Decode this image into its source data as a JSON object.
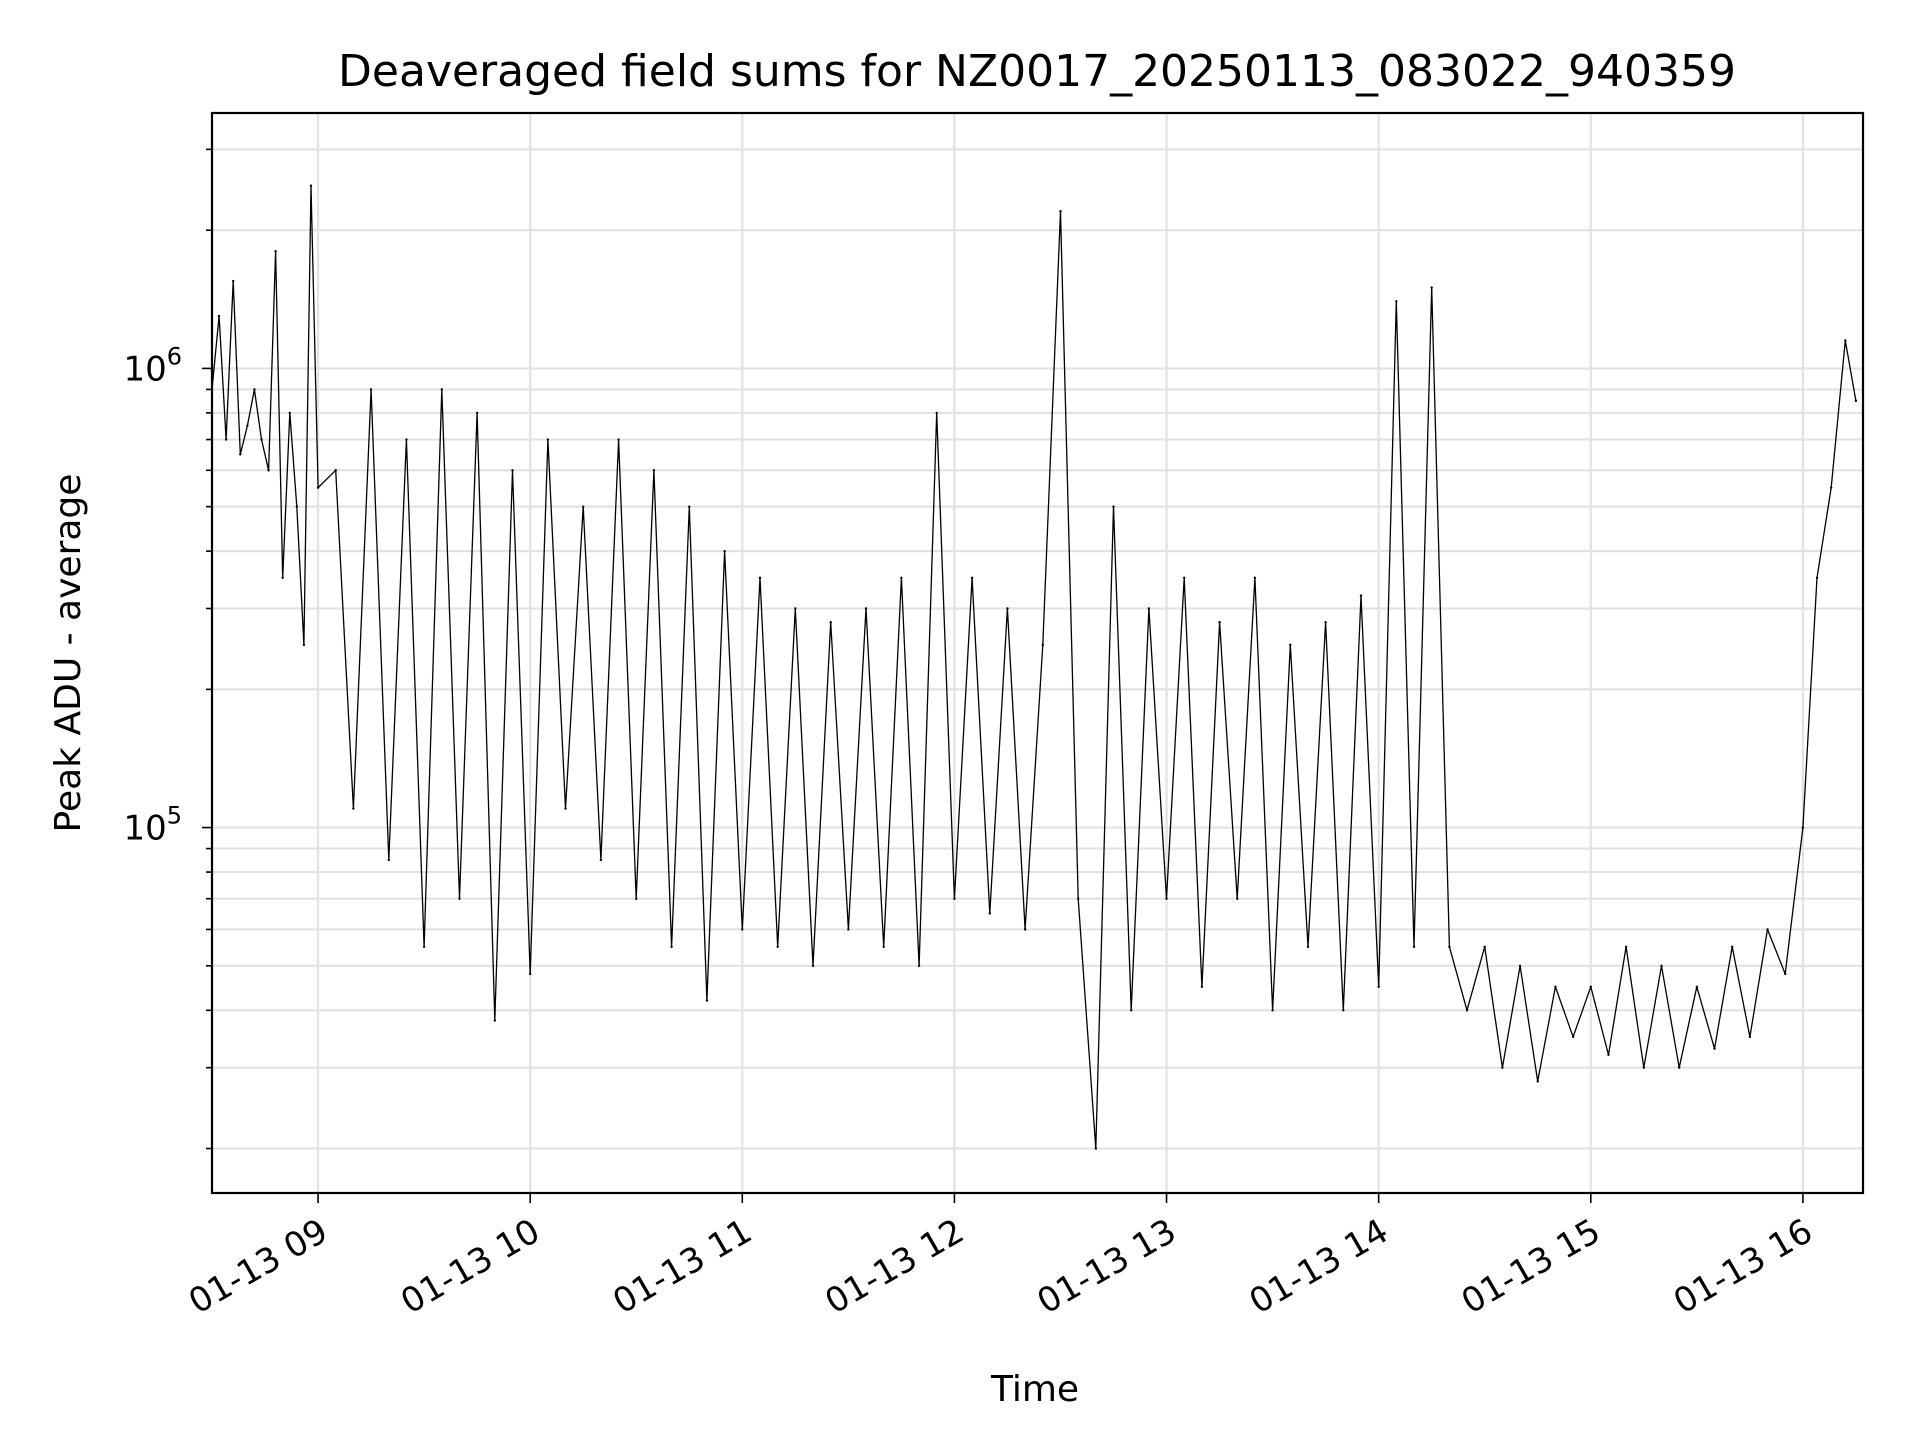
{
  "chart_data": {
    "type": "line",
    "title": "Deaveraged field sums for NZ0017_20250113_083022_940359",
    "xlabel": "Time",
    "ylabel": "Peak ADU - average",
    "x_ticks": [
      "01-13 09",
      "01-13 10",
      "01-13 11",
      "01-13 12",
      "01-13 13",
      "01-13 14",
      "01-13 15",
      "01-13 16"
    ],
    "x_tick_values": [
      "2025-01-13T09:00",
      "2025-01-13T10:00",
      "2025-01-13T11:00",
      "2025-01-13T12:00",
      "2025-01-13T13:00",
      "2025-01-13T14:00",
      "2025-01-13T15:00",
      "2025-01-13T16:00"
    ],
    "xlim": [
      "2025-01-13T08:30",
      "2025-01-13T16:17"
    ],
    "y_scale": "log",
    "ylim": [
      16000,
      3600000
    ],
    "y_ticks": [
      {
        "base": "10",
        "exp": "5",
        "value": 100000
      },
      {
        "base": "10",
        "exp": "6",
        "value": 1000000
      }
    ],
    "grid": true,
    "line_color": "#000000",
    "series": [
      {
        "x": [
          "2025-01-13T08:30",
          "2025-01-13T08:32",
          "2025-01-13T08:34",
          "2025-01-13T08:36",
          "2025-01-13T08:38",
          "2025-01-13T08:40",
          "2025-01-13T08:42",
          "2025-01-13T08:44",
          "2025-01-13T08:46",
          "2025-01-13T08:48",
          "2025-01-13T08:50",
          "2025-01-13T08:52",
          "2025-01-13T08:54",
          "2025-01-13T08:56",
          "2025-01-13T08:58",
          "2025-01-13T09:00",
          "2025-01-13T09:05",
          "2025-01-13T09:10",
          "2025-01-13T09:15",
          "2025-01-13T09:20",
          "2025-01-13T09:25",
          "2025-01-13T09:30",
          "2025-01-13T09:35",
          "2025-01-13T09:40",
          "2025-01-13T09:45",
          "2025-01-13T09:50",
          "2025-01-13T09:55",
          "2025-01-13T10:00",
          "2025-01-13T10:05",
          "2025-01-13T10:10",
          "2025-01-13T10:15",
          "2025-01-13T10:20",
          "2025-01-13T10:25",
          "2025-01-13T10:30",
          "2025-01-13T10:35",
          "2025-01-13T10:40",
          "2025-01-13T10:45",
          "2025-01-13T10:50",
          "2025-01-13T10:55",
          "2025-01-13T11:00",
          "2025-01-13T11:05",
          "2025-01-13T11:10",
          "2025-01-13T11:15",
          "2025-01-13T11:20",
          "2025-01-13T11:25",
          "2025-01-13T11:30",
          "2025-01-13T11:35",
          "2025-01-13T11:40",
          "2025-01-13T11:45",
          "2025-01-13T11:50",
          "2025-01-13T11:55",
          "2025-01-13T12:00",
          "2025-01-13T12:05",
          "2025-01-13T12:10",
          "2025-01-13T12:15",
          "2025-01-13T12:20",
          "2025-01-13T12:25",
          "2025-01-13T12:30",
          "2025-01-13T12:35",
          "2025-01-13T12:40",
          "2025-01-13T12:45",
          "2025-01-13T12:50",
          "2025-01-13T12:55",
          "2025-01-13T13:00",
          "2025-01-13T13:05",
          "2025-01-13T13:10",
          "2025-01-13T13:15",
          "2025-01-13T13:20",
          "2025-01-13T13:25",
          "2025-01-13T13:30",
          "2025-01-13T13:35",
          "2025-01-13T13:40",
          "2025-01-13T13:45",
          "2025-01-13T13:50",
          "2025-01-13T13:55",
          "2025-01-13T14:00",
          "2025-01-13T14:05",
          "2025-01-13T14:10",
          "2025-01-13T14:15",
          "2025-01-13T14:20",
          "2025-01-13T14:25",
          "2025-01-13T14:30",
          "2025-01-13T14:35",
          "2025-01-13T14:40",
          "2025-01-13T14:45",
          "2025-01-13T14:50",
          "2025-01-13T14:55",
          "2025-01-13T15:00",
          "2025-01-13T15:05",
          "2025-01-13T15:10",
          "2025-01-13T15:15",
          "2025-01-13T15:20",
          "2025-01-13T15:25",
          "2025-01-13T15:30",
          "2025-01-13T15:35",
          "2025-01-13T15:40",
          "2025-01-13T15:45",
          "2025-01-13T15:50",
          "2025-01-13T15:55",
          "2025-01-13T16:00",
          "2025-01-13T16:04",
          "2025-01-13T16:08",
          "2025-01-13T16:12",
          "2025-01-13T16:15"
        ],
        "y": [
          900000,
          1300000,
          700000,
          1550000,
          650000,
          750000,
          900000,
          700000,
          600000,
          1800000,
          350000,
          800000,
          500000,
          250000,
          2500000,
          550000,
          600000,
          110000,
          900000,
          85000,
          700000,
          55000,
          900000,
          70000,
          800000,
          38000,
          600000,
          48000,
          700000,
          110000,
          500000,
          85000,
          700000,
          70000,
          600000,
          55000,
          500000,
          42000,
          400000,
          60000,
          350000,
          55000,
          300000,
          50000,
          280000,
          60000,
          300000,
          55000,
          350000,
          50000,
          800000,
          70000,
          350000,
          65000,
          300000,
          60000,
          250000,
          2200000,
          70000,
          20000,
          500000,
          40000,
          300000,
          70000,
          350000,
          45000,
          280000,
          70000,
          350000,
          40000,
          250000,
          55000,
          280000,
          40000,
          320000,
          45000,
          1400000,
          55000,
          1500000,
          55000,
          40000,
          55000,
          30000,
          50000,
          28000,
          45000,
          35000,
          45000,
          32000,
          55000,
          30000,
          50000,
          30000,
          45000,
          33000,
          55000,
          35000,
          60000,
          48000,
          100000,
          350000,
          550000,
          1150000,
          850000
        ]
      }
    ]
  }
}
